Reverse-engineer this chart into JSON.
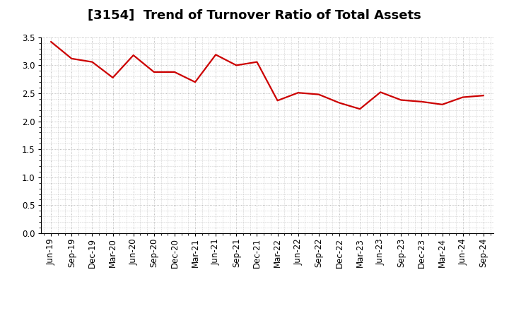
{
  "title": "[3154]  Trend of Turnover Ratio of Total Assets",
  "x_labels": [
    "Jun-19",
    "Sep-19",
    "Dec-19",
    "Mar-20",
    "Jun-20",
    "Sep-20",
    "Dec-20",
    "Mar-21",
    "Jun-21",
    "Sep-21",
    "Dec-21",
    "Mar-22",
    "Jun-22",
    "Sep-22",
    "Dec-22",
    "Mar-23",
    "Jun-23",
    "Sep-23",
    "Dec-23",
    "Mar-24",
    "Jun-24",
    "Sep-24"
  ],
  "y_values": [
    3.42,
    3.12,
    3.06,
    2.78,
    3.18,
    2.88,
    2.88,
    2.7,
    3.19,
    3.0,
    3.06,
    2.37,
    2.51,
    2.48,
    2.33,
    2.22,
    2.52,
    2.38,
    2.35,
    2.3,
    2.43,
    2.46
  ],
  "ylim": [
    0.0,
    3.5
  ],
  "yticks": [
    0.0,
    0.5,
    1.0,
    1.5,
    2.0,
    2.5,
    3.0,
    3.5
  ],
  "line_color": "#cc0000",
  "line_width": 1.6,
  "background_color": "#ffffff",
  "grid_color": "#aaaaaa",
  "title_fontsize": 13,
  "tick_fontsize": 8.5,
  "fig_width": 7.2,
  "fig_height": 4.4,
  "dpi": 100
}
